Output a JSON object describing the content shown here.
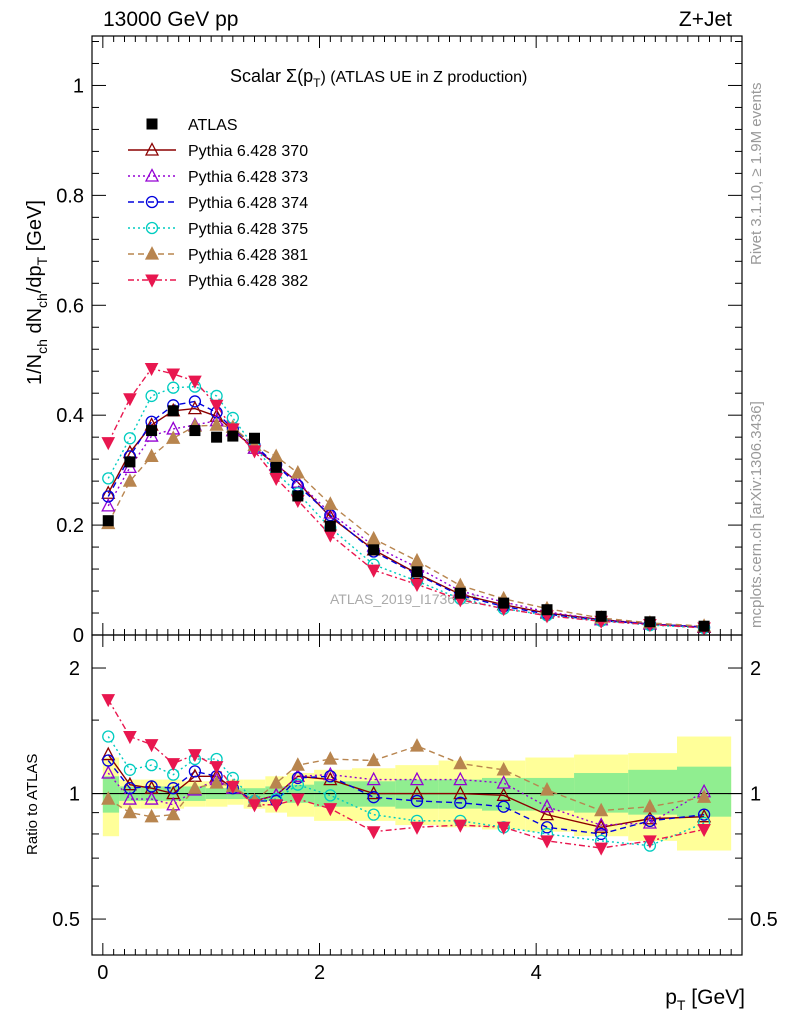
{
  "header": {
    "energy_label": "13000 GeV pp",
    "process_label": "Z+Jet",
    "plot_title_prefix": "Scalar Σ(p",
    "plot_title_sub": "T",
    "plot_title_suffix": ") (ATLAS UE in Z production)"
  },
  "side_labels": {
    "rivet": "Rivet 3.1.10, ≥ 1.9M events",
    "mcplots": "mcplots.cern.ch [arXiv:1306.3436]"
  },
  "watermark": "ATLAS_2019_I1736531",
  "chart_data": [
    {
      "type": "line",
      "title": "Scalar Σ(pT) (ATLAS UE in Z production)",
      "xlabel": "p_T [GeV]",
      "ylabel": "1/N_ch dN_ch/dp_T [GeV]",
      "xlim": [
        -0.1,
        5.9
      ],
      "ylim": [
        0,
        1.09
      ],
      "yticks": [
        0,
        0.2,
        0.4,
        0.6,
        0.8,
        1
      ],
      "ytick_labels": [
        "0",
        "0.2",
        "0.4",
        "0.6",
        "0.8",
        "1"
      ],
      "legend_position": "top-left",
      "x": [
        0.05,
        0.25,
        0.45,
        0.65,
        0.85,
        1.05,
        1.2,
        1.4,
        1.6,
        1.8,
        2.1,
        2.5,
        2.9,
        3.3,
        3.7,
        4.1,
        4.6,
        5.05,
        5.55
      ],
      "series": [
        {
          "name": "ATLAS",
          "values": [
            0.208,
            0.315,
            0.372,
            0.408,
            0.372,
            0.36,
            0.362,
            0.358,
            0.305,
            0.253,
            0.198,
            0.155,
            0.115,
            0.076,
            0.058,
            0.046,
            0.034,
            0.024,
            0.016
          ]
        },
        {
          "name": "Pythia 6.428 370",
          "values": [
            0.258,
            0.332,
            0.382,
            0.408,
            0.412,
            0.398,
            0.372,
            0.34,
            0.31,
            0.278,
            0.215,
            0.155,
            0.112,
            0.074,
            0.055,
            0.04,
            0.028,
            0.02,
            0.014
          ]
        },
        {
          "name": "Pythia 6.428 373",
          "values": [
            0.235,
            0.305,
            0.362,
            0.375,
            0.382,
            0.39,
            0.372,
            0.34,
            0.31,
            0.278,
            0.222,
            0.162,
            0.123,
            0.08,
            0.06,
            0.042,
            0.028,
            0.02,
            0.015
          ]
        },
        {
          "name": "Pythia 6.428 374",
          "values": [
            0.252,
            0.325,
            0.388,
            0.418,
            0.425,
            0.405,
            0.375,
            0.345,
            0.31,
            0.272,
            0.218,
            0.152,
            0.11,
            0.072,
            0.052,
            0.038,
            0.026,
            0.02,
            0.014
          ]
        },
        {
          "name": "Pythia 6.428 375",
          "values": [
            0.285,
            0.358,
            0.435,
            0.45,
            0.452,
            0.435,
            0.395,
            0.342,
            0.295,
            0.258,
            0.195,
            0.128,
            0.098,
            0.066,
            0.048,
            0.036,
            0.026,
            0.018,
            0.013
          ]
        },
        {
          "name": "Pythia 6.428 381",
          "values": [
            0.203,
            0.28,
            0.325,
            0.358,
            0.38,
            0.382,
            0.378,
            0.345,
            0.325,
            0.295,
            0.238,
            0.175,
            0.135,
            0.09,
            0.066,
            0.048,
            0.031,
            0.022,
            0.016
          ]
        },
        {
          "name": "Pythia 6.428 382",
          "values": [
            0.35,
            0.43,
            0.485,
            0.475,
            0.462,
            0.418,
            0.375,
            0.335,
            0.285,
            0.245,
            0.182,
            0.118,
            0.092,
            0.064,
            0.048,
            0.035,
            0.025,
            0.019,
            0.013
          ]
        }
      ]
    },
    {
      "type": "line",
      "title": "",
      "xlabel": "p_T [GeV]",
      "ylabel": "Ratio to ATLAS",
      "xlim": [
        -0.1,
        5.9
      ],
      "ylim": [
        0.41,
        2.4
      ],
      "ylog": true,
      "xticks": [
        0,
        2,
        4
      ],
      "xtick_labels": [
        "0",
        "2",
        "4"
      ],
      "yticks": [
        0.5,
        1,
        2
      ],
      "ytick_labels": [
        "0.5",
        "1",
        "2"
      ],
      "x": [
        0.05,
        0.25,
        0.45,
        0.65,
        0.85,
        1.05,
        1.2,
        1.4,
        1.6,
        1.8,
        2.1,
        2.5,
        2.9,
        3.3,
        3.7,
        4.1,
        4.6,
        5.05,
        5.55
      ],
      "bands": {
        "x_edges": [
          0,
          0.15,
          0.35,
          0.55,
          0.75,
          0.95,
          1.15,
          1.3,
          1.5,
          1.7,
          1.95,
          2.3,
          2.7,
          3.1,
          3.5,
          3.9,
          4.35,
          4.85,
          5.3,
          5.8
        ],
        "inner": [
          [
            0.9,
            1.1
          ],
          [
            0.96,
            1.04
          ],
          [
            0.96,
            1.04
          ],
          [
            0.96,
            1.04
          ],
          [
            0.96,
            1.04
          ],
          [
            0.97,
            1.03
          ],
          [
            0.97,
            1.03
          ],
          [
            0.97,
            1.03
          ],
          [
            0.96,
            1.04
          ],
          [
            0.95,
            1.05
          ],
          [
            0.93,
            1.07
          ],
          [
            0.93,
            1.07
          ],
          [
            0.92,
            1.08
          ],
          [
            0.92,
            1.08
          ],
          [
            0.91,
            1.09
          ],
          [
            0.91,
            1.09
          ],
          [
            0.9,
            1.12
          ],
          [
            0.89,
            1.14
          ],
          [
            0.88,
            1.16
          ]
        ],
        "outer": [
          [
            0.79,
            1.22
          ],
          [
            0.92,
            1.08
          ],
          [
            0.92,
            1.08
          ],
          [
            0.92,
            1.08
          ],
          [
            0.93,
            1.07
          ],
          [
            0.93,
            1.07
          ],
          [
            0.94,
            1.08
          ],
          [
            0.92,
            1.08
          ],
          [
            0.9,
            1.1
          ],
          [
            0.88,
            1.12
          ],
          [
            0.86,
            1.14
          ],
          [
            0.86,
            1.15
          ],
          [
            0.84,
            1.17
          ],
          [
            0.83,
            1.2
          ],
          [
            0.82,
            1.2
          ],
          [
            0.81,
            1.22
          ],
          [
            0.79,
            1.24
          ],
          [
            0.77,
            1.25
          ],
          [
            0.73,
            1.37
          ]
        ]
      },
      "series": [
        {
          "name": "Pythia 6.428 370",
          "values": [
            1.24,
            1.05,
            1.03,
            1.0,
            1.1,
            1.1,
            1.03,
            0.96,
            0.99,
            1.1,
            1.08,
            1.0,
            1.0,
            1.0,
            0.99,
            0.89,
            0.83,
            0.87,
            0.88
          ]
        },
        {
          "name": "Pythia 6.428 373",
          "values": [
            1.12,
            0.97,
            0.97,
            0.94,
            1.02,
            1.08,
            1.03,
            0.96,
            0.99,
            1.1,
            1.11,
            1.08,
            1.08,
            1.08,
            1.06,
            0.93,
            0.84,
            0.85,
            1.01
          ]
        },
        {
          "name": "Pythia 6.428 374",
          "values": [
            1.2,
            1.03,
            1.04,
            1.03,
            1.13,
            1.1,
            1.03,
            0.96,
            0.96,
            1.09,
            1.1,
            0.98,
            0.96,
            0.95,
            0.93,
            0.83,
            0.8,
            0.86,
            0.89
          ]
        },
        {
          "name": "Pythia 6.428 375",
          "values": [
            1.37,
            1.14,
            1.17,
            1.11,
            1.21,
            1.21,
            1.09,
            0.96,
            0.97,
            1.05,
            0.99,
            0.89,
            0.86,
            0.86,
            0.83,
            0.8,
            0.77,
            0.75,
            0.85
          ]
        },
        {
          "name": "Pythia 6.428 381",
          "values": [
            0.97,
            0.9,
            0.88,
            0.89,
            1.03,
            1.06,
            1.04,
            0.96,
            1.06,
            1.17,
            1.21,
            1.2,
            1.3,
            1.18,
            1.14,
            1.02,
            0.91,
            0.93,
            0.98
          ]
        },
        {
          "name": "Pythia 6.428 382",
          "values": [
            1.68,
            1.37,
            1.31,
            1.18,
            1.24,
            1.16,
            1.04,
            0.94,
            0.94,
            0.97,
            0.92,
            0.81,
            0.83,
            0.84,
            0.83,
            0.77,
            0.74,
            0.77,
            0.82
          ]
        }
      ]
    }
  ],
  "legend": [
    {
      "label": "ATLAS",
      "color": "#000000",
      "marker": "square-filled",
      "dash": ""
    },
    {
      "label": "Pythia 6.428 370",
      "color": "#8b0000",
      "marker": "triangle-up-open",
      "dash": ""
    },
    {
      "label": "Pythia 6.428 373",
      "color": "#9400d3",
      "marker": "triangle-up-open",
      "dash": "2,3"
    },
    {
      "label": "Pythia 6.428 374",
      "color": "#0000dd",
      "marker": "circle-open",
      "dash": "6,4"
    },
    {
      "label": "Pythia 6.428 375",
      "color": "#00ccc0",
      "marker": "circle-open",
      "dash": "2,3"
    },
    {
      "label": "Pythia 6.428 381",
      "color": "#b8854f",
      "marker": "triangle-up-filled",
      "dash": "6,4"
    },
    {
      "label": "Pythia 6.428 382",
      "color": "#e8174f",
      "marker": "triangle-down-filled",
      "dash": "6,3,2,3"
    }
  ],
  "colors": {
    "band_inner": "#90ee90",
    "band_outer": "#ffff99"
  }
}
